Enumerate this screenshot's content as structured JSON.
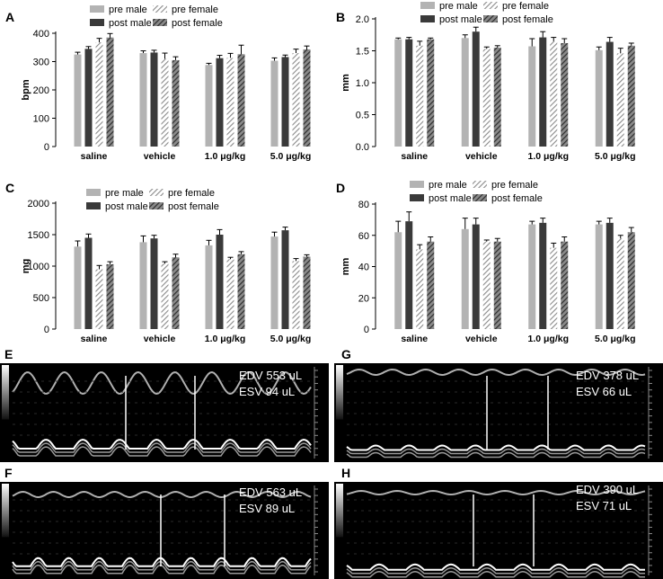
{
  "chart_data": [
    {
      "panel": "A",
      "type": "bar",
      "ylabel": "bpm",
      "ylim": [
        0,
        400
      ],
      "yticks": [
        "0",
        "100",
        "200",
        "300",
        "400"
      ],
      "categories": [
        "saline",
        "vehicle",
        "1.0 μg/kg",
        "5.0 μg/kg"
      ],
      "legend": [
        "pre male",
        "post male",
        "pre female",
        "post female"
      ],
      "series": [
        {
          "name": "pre male",
          "values": [
            325,
            330,
            288,
            303
          ],
          "errors": [
            8,
            8,
            6,
            10
          ]
        },
        {
          "name": "post male",
          "values": [
            345,
            332,
            312,
            316
          ],
          "errors": [
            8,
            8,
            10,
            7
          ]
        },
        {
          "name": "pre female",
          "values": [
            368,
            310,
            313,
            330
          ],
          "errors": [
            14,
            20,
            16,
            14
          ]
        },
        {
          "name": "post female",
          "values": [
            385,
            305,
            326,
            343
          ],
          "errors": [
            14,
            12,
            32,
            12
          ]
        }
      ]
    },
    {
      "panel": "B",
      "type": "bar",
      "ylabel": "mm",
      "ylim": [
        0,
        2.0
      ],
      "yticks": [
        "0.0",
        "0.5",
        "1.0",
        "1.5",
        "2.0"
      ],
      "categories": [
        "saline",
        "vehicle",
        "1.0 μg/kg",
        "5.0 μg/kg"
      ],
      "legend": [
        "pre male",
        "post male",
        "pre female",
        "post female"
      ],
      "series": [
        {
          "name": "pre male",
          "values": [
            1.68,
            1.7,
            1.57,
            1.51
          ],
          "errors": [
            0.02,
            0.05,
            0.12,
            0.05
          ]
        },
        {
          "name": "post male",
          "values": [
            1.68,
            1.8,
            1.71,
            1.64
          ],
          "errors": [
            0.03,
            0.07,
            0.09,
            0.07
          ]
        },
        {
          "name": "pre female",
          "values": [
            1.58,
            1.53,
            1.65,
            1.46
          ],
          "errors": [
            0.07,
            0.03,
            0.06,
            0.08
          ]
        },
        {
          "name": "post female",
          "values": [
            1.68,
            1.55,
            1.62,
            1.58
          ],
          "errors": [
            0.02,
            0.03,
            0.07,
            0.04
          ]
        }
      ]
    },
    {
      "panel": "C",
      "type": "bar",
      "ylabel": "mg",
      "ylim": [
        0,
        2000
      ],
      "yticks": [
        "0",
        "500",
        "1000",
        "1500",
        "2000"
      ],
      "categories": [
        "saline",
        "vehicle",
        "1.0 μg/kg",
        "5.0 μg/kg"
      ],
      "legend": [
        "pre male",
        "post male",
        "pre female",
        "post female"
      ],
      "series": [
        {
          "name": "pre male",
          "values": [
            1310,
            1380,
            1330,
            1470
          ],
          "errors": [
            90,
            100,
            80,
            70
          ]
        },
        {
          "name": "post male",
          "values": [
            1450,
            1440,
            1500,
            1570
          ],
          "errors": [
            60,
            50,
            80,
            50
          ]
        },
        {
          "name": "pre female",
          "values": [
            950,
            1040,
            1110,
            1080
          ],
          "errors": [
            60,
            30,
            30,
            40
          ]
        },
        {
          "name": "post female",
          "values": [
            1030,
            1140,
            1190,
            1150
          ],
          "errors": [
            40,
            50,
            40,
            30
          ]
        }
      ]
    },
    {
      "panel": "D",
      "type": "bar",
      "ylabel": "mm",
      "ylim": [
        0,
        80
      ],
      "yticks": [
        "0",
        "20",
        "40",
        "60",
        "80"
      ],
      "categories": [
        "saline",
        "vehicle",
        "1.0 μg/kg",
        "5.0 μg/kg"
      ],
      "legend": [
        "pre male",
        "post male",
        "pre female",
        "post female"
      ],
      "series": [
        {
          "name": "pre male",
          "values": [
            62,
            64,
            67,
            67
          ],
          "errors": [
            7,
            7,
            2,
            2
          ]
        },
        {
          "name": "post male",
          "values": [
            69,
            67,
            68,
            68
          ],
          "errors": [
            6,
            4,
            3,
            3
          ]
        },
        {
          "name": "pre female",
          "values": [
            51,
            56,
            52,
            58
          ],
          "errors": [
            3,
            1,
            3,
            2
          ]
        },
        {
          "name": "post female",
          "values": [
            56,
            56,
            56,
            62
          ],
          "errors": [
            3,
            2,
            3,
            3
          ]
        }
      ]
    }
  ],
  "echo_panels": [
    {
      "letter": "E",
      "edv": "EDV 553 uL",
      "esv": "ESV 94 uL"
    },
    {
      "letter": "G",
      "edv": "EDV 378 uL",
      "esv": "ESV 66 uL"
    },
    {
      "letter": "F",
      "edv": "EDV 563 uL",
      "esv": "ESV 89 uL"
    },
    {
      "letter": "H",
      "edv": "EDV 390 uL",
      "esv": "ESV 71 uL"
    }
  ],
  "colors": {
    "pre_male": "#b3b3b3",
    "post_male": "#3a3a3a",
    "pre_female_hatch": "#8a8a8a",
    "post_female_hatch": "#3c3c3c",
    "echo_background": "#000000",
    "echo_marker": "#ffffff"
  }
}
